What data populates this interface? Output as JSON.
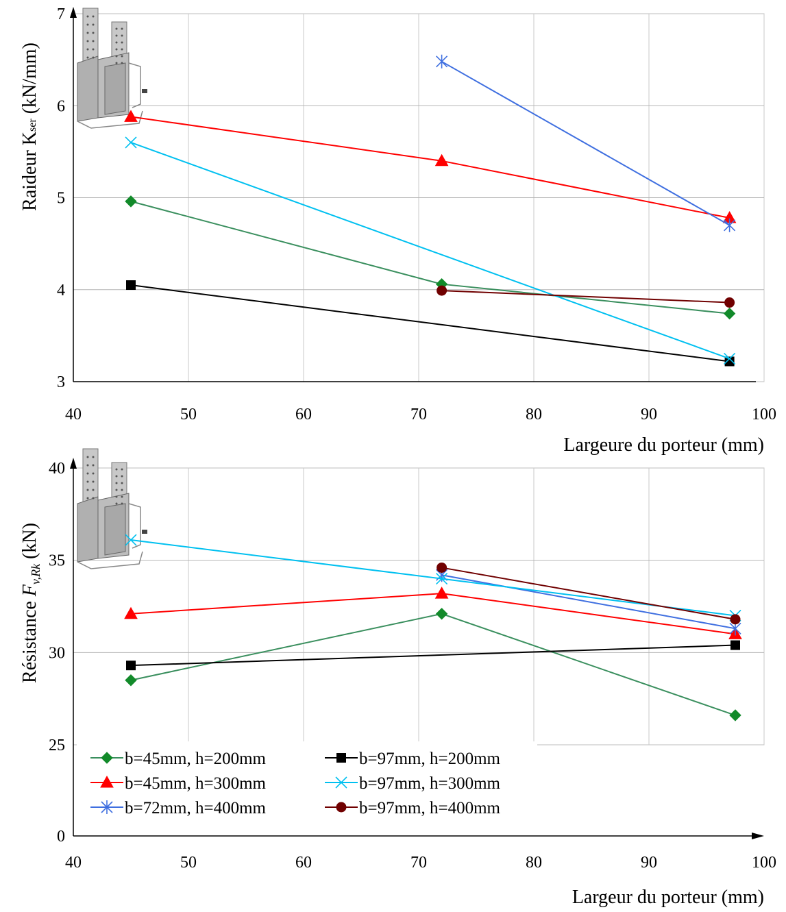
{
  "chart_data": [
    {
      "type": "line",
      "title": "",
      "xlabel": "Largeure du porteur (mm)",
      "ylabel_main": "Raideur K",
      "ylabel_sub": "ser",
      "ylabel_unit": " (kN/mm)",
      "xlim": [
        40,
        100
      ],
      "ylim": [
        3,
        7
      ],
      "x_ticks": [
        "40",
        "50",
        "60",
        "70",
        "80",
        "90",
        "100"
      ],
      "y_ticks": [
        "3",
        "4",
        "5",
        "6",
        "7"
      ],
      "grid": true,
      "series": [
        {
          "name": "b=45mm, h=200mm",
          "color": "#3a8f5e",
          "marker": "diamond-green",
          "x": [
            45,
            72,
            97
          ],
          "y": [
            4.96,
            4.06,
            3.74
          ]
        },
        {
          "name": "b=45mm, h=300mm",
          "color": "#ff0000",
          "marker": "triangle",
          "x": [
            45,
            72,
            97
          ],
          "y": [
            5.88,
            5.4,
            4.78
          ]
        },
        {
          "name": "b=72mm, h=400mm",
          "color": "#3f6fe0",
          "marker": "asterisk",
          "x": [
            72,
            97
          ],
          "y": [
            6.48,
            4.7
          ]
        },
        {
          "name": "b=97mm, h=200mm",
          "color": "#000000",
          "marker": "square",
          "x": [
            45,
            97
          ],
          "y": [
            4.05,
            3.22
          ]
        },
        {
          "name": "b=97mm, h=300mm",
          "color": "#00c0f0",
          "marker": "x",
          "x": [
            45,
            97
          ],
          "y": [
            5.6,
            3.25
          ]
        },
        {
          "name": "b=97mm, h=400mm",
          "color": "#700000",
          "marker": "circle",
          "x": [
            72,
            97
          ],
          "y": [
            3.99,
            3.86
          ]
        }
      ]
    },
    {
      "type": "line",
      "title": "",
      "xlabel": "Largeur du porteur (mm)",
      "ylabel_main": "Résistance ",
      "ylabel_var": "F",
      "ylabel_sub": "v,Rk",
      "ylabel_unit": " (kN)",
      "xlim": [
        40,
        100
      ],
      "ylim": [
        0,
        40
      ],
      "x_ticks": [
        "40",
        "50",
        "60",
        "70",
        "80",
        "90",
        "100"
      ],
      "y_ticks": [
        "0",
        "25",
        "30",
        "35",
        "40"
      ],
      "grid": true,
      "legend_position": "bottom-left",
      "series": [
        {
          "name": "b=45mm, h=200mm",
          "color": "#3a8f5e",
          "marker": "diamond-green",
          "x": [
            45,
            72,
            97.5
          ],
          "y": [
            28.5,
            32.1,
            26.6
          ]
        },
        {
          "name": "b=45mm, h=300mm",
          "color": "#ff0000",
          "marker": "triangle",
          "x": [
            45,
            72,
            97.5
          ],
          "y": [
            32.1,
            33.2,
            31.0
          ]
        },
        {
          "name": "b=72mm, h=400mm",
          "color": "#3f6fe0",
          "marker": "asterisk",
          "x": [
            72,
            97.5
          ],
          "y": [
            34.2,
            31.3
          ]
        },
        {
          "name": "b=97mm, h=200mm",
          "color": "#000000",
          "marker": "square",
          "x": [
            45,
            97.5
          ],
          "y": [
            29.3,
            30.4
          ]
        },
        {
          "name": "b=97mm, h=300mm",
          "color": "#00c0f0",
          "marker": "x",
          "x": [
            45,
            72,
            97.5
          ],
          "y": [
            36.1,
            34.0,
            32.0
          ]
        },
        {
          "name": "b=97mm, h=400mm",
          "color": "#700000",
          "marker": "circle",
          "x": [
            72,
            97.5
          ],
          "y": [
            34.6,
            31.8
          ]
        }
      ]
    }
  ]
}
